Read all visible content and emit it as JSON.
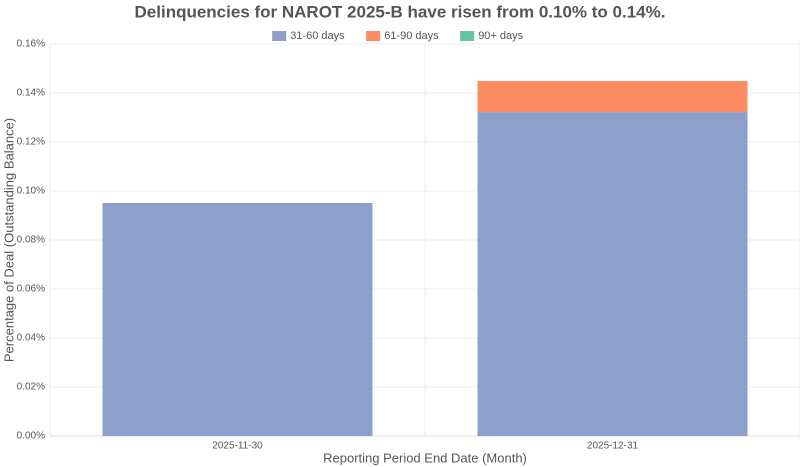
{
  "chart_data": {
    "type": "stacked_bar",
    "title": "Delinquencies for NAROT 2025-B have risen from 0.10% to 0.14%.",
    "x_label": "Reporting Period End Date (Month)",
    "y_label": "Percentage of Deal (Outstanding Balance)",
    "categories": [
      "2025-11-30",
      "2025-12-31"
    ],
    "series": [
      {
        "name": "31-60 days",
        "color": "#8da0cb",
        "values": [
          0.0951,
          0.1322
        ]
      },
      {
        "name": "61-90 days",
        "color": "#fc8d62",
        "values": [
          0,
          0.0127
        ]
      },
      {
        "name": "90+ days",
        "color": "#66c2a5",
        "values": [
          0,
          0
        ]
      }
    ],
    "ylim": [
      0,
      0.16
    ],
    "yticks": [
      {
        "value": 0,
        "label": "0.00%"
      },
      {
        "value": 0.02,
        "label": "0.02%"
      },
      {
        "value": 0.04,
        "label": "0.04%"
      },
      {
        "value": 0.06,
        "label": "0.06%"
      },
      {
        "value": 0.08,
        "label": "0.08%"
      },
      {
        "value": 0.1,
        "label": "0.10%"
      },
      {
        "value": 0.12,
        "label": "0.12%"
      },
      {
        "value": 0.14,
        "label": "0.14%"
      },
      {
        "value": 0.16,
        "label": "0.16%"
      }
    ],
    "grid": true
  }
}
